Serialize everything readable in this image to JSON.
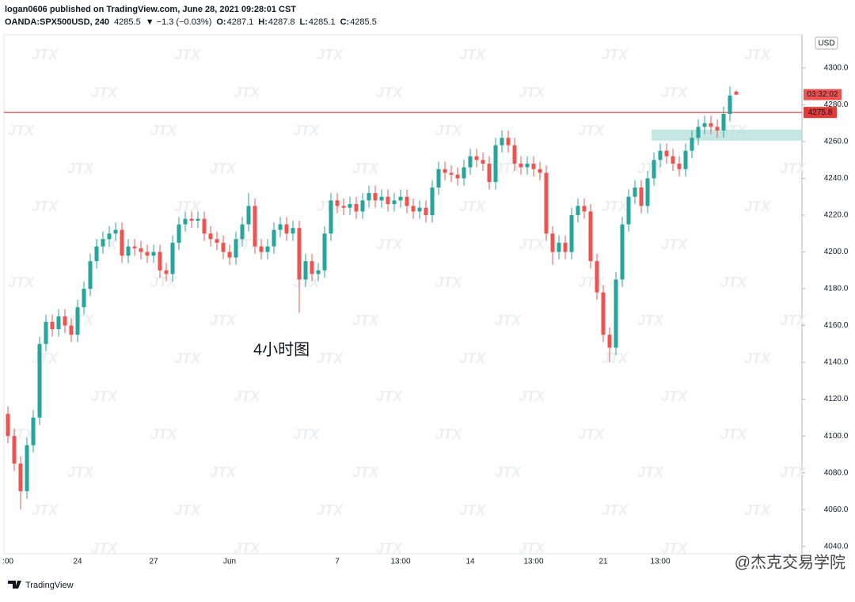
{
  "header": {
    "publisher": "logan0606 published on TradingView.com, June 28, 2021 09:28:01 CST",
    "symbol": "OANDA:SPX500USD, 240",
    "last": "4285.5",
    "change": "▼ −1.3 (−0.03%)",
    "open_label": "O:",
    "open": "4287.1",
    "high_label": "H:",
    "high": "4287.8",
    "low_label": "L:",
    "low": "4285.1",
    "close_label": "C:",
    "close": "4285.5"
  },
  "chart_data": {
    "type": "candlestick",
    "currency": "USD",
    "annotation": "4小时图",
    "countdown": "03:32:02",
    "watermark": "JTX",
    "footer_logo": "TradingView",
    "credit": "@杰克交易学院",
    "up_color": "#26a69a",
    "down_color": "#ef5350",
    "ylim": [
      4036,
      4318
    ],
    "yticks": [
      {
        "value": 4040,
        "label": "4040.0"
      },
      {
        "value": 4060,
        "label": "4060.0"
      },
      {
        "value": 4080,
        "label": "4080.0"
      },
      {
        "value": 4100,
        "label": "4100.0"
      },
      {
        "value": 4120,
        "label": "4120.0"
      },
      {
        "value": 4140,
        "label": "4140.0"
      },
      {
        "value": 4160,
        "label": "4160.0"
      },
      {
        "value": 4180,
        "label": "4180.0"
      },
      {
        "value": 4200,
        "label": "4200.0"
      },
      {
        "value": 4220,
        "label": "4220.0"
      },
      {
        "value": 4240,
        "label": "4240.0"
      },
      {
        "value": 4260,
        "label": "4260.0"
      },
      {
        "value": 4280,
        "label": "4280.0"
      },
      {
        "value": 4300,
        "label": "4300.0"
      }
    ],
    "hline": {
      "value": 4275.8,
      "label": "4275.8",
      "color": "#e53935"
    },
    "zone": {
      "low": 4260.5,
      "high": 4266.5,
      "color": "#b2dfdb"
    },
    "categories": [
      ":00",
      null,
      null,
      null,
      null,
      null,
      null,
      null,
      null,
      null,
      null,
      "24",
      null,
      null,
      null,
      null,
      null,
      null,
      null,
      null,
      null,
      null,
      null,
      "27",
      null,
      null,
      null,
      null,
      null,
      null,
      null,
      null,
      null,
      null,
      null,
      "Jun",
      null,
      null,
      null,
      null,
      null,
      null,
      null,
      null,
      null,
      null,
      null,
      null,
      null,
      null,
      null,
      null,
      "7",
      null,
      null,
      null,
      null,
      null,
      null,
      null,
      null,
      null,
      "13:00",
      null,
      null,
      null,
      null,
      null,
      null,
      null,
      null,
      null,
      null,
      "14",
      null,
      null,
      null,
      null,
      null,
      null,
      null,
      null,
      null,
      "13:00",
      null,
      null,
      null,
      null,
      null,
      null,
      null,
      null,
      null,
      null,
      "21",
      null,
      null,
      null,
      null,
      null,
      null,
      null,
      null,
      "13:00",
      null,
      null,
      null,
      null,
      null,
      null,
      null,
      null,
      null,
      null,
      null,
      null
    ],
    "open": [
      4112,
      4100,
      4085,
      4070,
      4095,
      4110,
      4150,
      4162,
      4158,
      4165,
      4160,
      4155,
      4170,
      4180,
      4195,
      4203,
      4207,
      4210,
      4212,
      4198,
      4203,
      4202,
      4200,
      4198,
      4200,
      4190,
      4188,
      4205,
      4215,
      4218,
      4217,
      4218,
      4210,
      4207,
      4205,
      4200,
      4197,
      4207,
      4215,
      4225,
      4203,
      4200,
      4203,
      4212,
      4215,
      4210,
      4213,
      4185,
      4195,
      4188,
      4190,
      4210,
      4228,
      4225,
      4224,
      4226,
      4222,
      4228,
      4232,
      4228,
      4230,
      4226,
      4228,
      4230,
      4225,
      4222,
      4224,
      4220,
      4235,
      4245,
      4243,
      4242,
      4240,
      4246,
      4252,
      4250,
      4248,
      4238,
      4258,
      4262,
      4258,
      4248,
      4246,
      4248,
      4245,
      4243,
      4210,
      4200,
      4205,
      4200,
      4220,
      4225,
      4222,
      4195,
      4178,
      4155,
      4148,
      4185,
      4215,
      4230,
      4235,
      4225,
      4240,
      4250,
      4255,
      4252,
      4248,
      4245,
      4255,
      4262,
      4268,
      4270,
      4268,
      4266,
      4275,
      4287.1
    ],
    "high": [
      4116,
      4104,
      4089,
      4099,
      4114,
      4154,
      4166,
      4166,
      4169,
      4169,
      4164,
      4174,
      4184,
      4199,
      4207,
      4211,
      4214,
      4216,
      4216,
      4207,
      4207,
      4206,
      4204,
      4204,
      4204,
      4194,
      4209,
      4219,
      4222,
      4222,
      4222,
      4222,
      4214,
      4211,
      4209,
      4204,
      4211,
      4219,
      4232,
      4229,
      4207,
      4207,
      4216,
      4219,
      4219,
      4217,
      4217,
      4199,
      4199,
      4194,
      4214,
      4232,
      4232,
      4229,
      4230,
      4230,
      4232,
      4236,
      4236,
      4234,
      4234,
      4232,
      4234,
      4234,
      4229,
      4228,
      4228,
      4239,
      4249,
      4249,
      4247,
      4246,
      4250,
      4256,
      4256,
      4254,
      4252,
      4262,
      4266,
      4266,
      4262,
      4252,
      4252,
      4252,
      4249,
      4247,
      4214,
      4209,
      4209,
      4224,
      4229,
      4229,
      4226,
      4199,
      4182,
      4159,
      4189,
      4219,
      4234,
      4239,
      4239,
      4244,
      4254,
      4259,
      4259,
      4256,
      4252,
      4259,
      4266,
      4272,
      4274,
      4274,
      4272,
      4279,
      4290,
      4287.8
    ],
    "low": [
      4096,
      4081,
      4060,
      4066,
      4091,
      4106,
      4146,
      4154,
      4154,
      4156,
      4151,
      4151,
      4166,
      4176,
      4191,
      4199,
      4203,
      4206,
      4194,
      4194,
      4198,
      4196,
      4194,
      4194,
      4186,
      4184,
      4184,
      4201,
      4211,
      4213,
      4213,
      4206,
      4203,
      4201,
      4196,
      4193,
      4193,
      4203,
      4211,
      4199,
      4196,
      4196,
      4199,
      4208,
      4206,
      4206,
      4167,
      4181,
      4184,
      4184,
      4186,
      4206,
      4221,
      4220,
      4220,
      4218,
      4218,
      4224,
      4224,
      4224,
      4222,
      4222,
      4224,
      4221,
      4218,
      4218,
      4216,
      4216,
      4231,
      4239,
      4238,
      4236,
      4236,
      4242,
      4246,
      4244,
      4234,
      4234,
      4254,
      4254,
      4244,
      4242,
      4242,
      4241,
      4239,
      4206,
      4193,
      4196,
      4196,
      4196,
      4216,
      4218,
      4191,
      4174,
      4151,
      4140,
      4144,
      4181,
      4211,
      4226,
      4221,
      4221,
      4236,
      4246,
      4248,
      4244,
      4241,
      4241,
      4251,
      4258,
      4264,
      4264,
      4262,
      4262,
      4271,
      4285.1
    ],
    "close": [
      4100,
      4085,
      4070,
      4095,
      4110,
      4150,
      4162,
      4158,
      4165,
      4160,
      4155,
      4170,
      4180,
      4195,
      4203,
      4207,
      4210,
      4212,
      4198,
      4203,
      4202,
      4200,
      4198,
      4200,
      4190,
      4188,
      4205,
      4215,
      4218,
      4217,
      4218,
      4210,
      4207,
      4205,
      4200,
      4197,
      4207,
      4215,
      4225,
      4203,
      4200,
      4203,
      4212,
      4215,
      4210,
      4213,
      4185,
      4195,
      4188,
      4190,
      4210,
      4228,
      4225,
      4224,
      4226,
      4222,
      4228,
      4232,
      4228,
      4230,
      4226,
      4228,
      4230,
      4225,
      4222,
      4224,
      4220,
      4235,
      4245,
      4243,
      4242,
      4240,
      4246,
      4252,
      4250,
      4248,
      4238,
      4258,
      4262,
      4258,
      4248,
      4246,
      4248,
      4245,
      4243,
      4210,
      4200,
      4205,
      4200,
      4220,
      4225,
      4222,
      4195,
      4178,
      4155,
      4148,
      4185,
      4215,
      4230,
      4235,
      4225,
      4240,
      4250,
      4255,
      4252,
      4248,
      4245,
      4255,
      4262,
      4268,
      4270,
      4268,
      4266,
      4275,
      4285,
      4285.5
    ]
  }
}
